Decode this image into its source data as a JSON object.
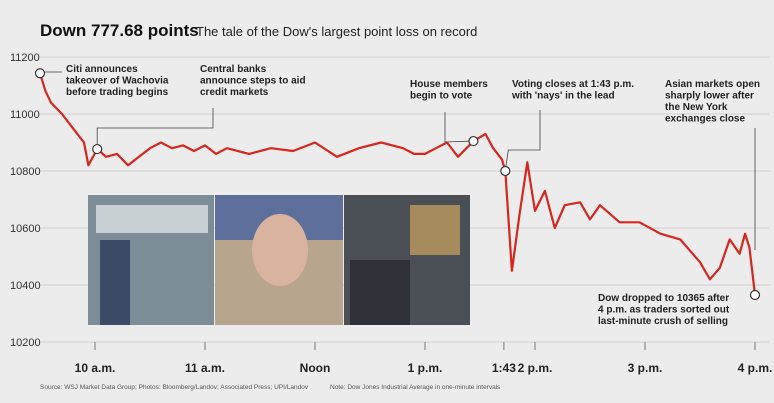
{
  "chart_data": {
    "type": "line",
    "title": "Down 777.68 points",
    "subtitle": "The tale of the Dow's largest point loss on record",
    "source": "Source: WSJ Market Data Group; Photos: Bloomberg/Landov; Associated Press; UPI/Landov",
    "note": "Note: Dow Jones Industrial Average in one-minute intervals",
    "color": "#d7261e",
    "grid": true,
    "xlim": [
      9.5,
      16
    ],
    "ylim": [
      10200,
      11200
    ],
    "yticks": [
      {
        "value": 10200,
        "label": "10200"
      },
      {
        "value": 10400,
        "label": "10400"
      },
      {
        "value": 10600,
        "label": "10600"
      },
      {
        "value": 10800,
        "label": "10800"
      },
      {
        "value": 11000,
        "label": "11000"
      },
      {
        "value": 11200,
        "label": "11200"
      }
    ],
    "xticks": [
      {
        "value": 10,
        "label": "10 a.m."
      },
      {
        "value": 11,
        "label": "11 a.m."
      },
      {
        "value": 12,
        "label": "Noon"
      },
      {
        "value": 13,
        "label": "1 p.m."
      },
      {
        "value": 13.717,
        "label": "1:43",
        "color": "#d7261e"
      },
      {
        "value": 14,
        "label": "2 p.m."
      },
      {
        "value": 15,
        "label": "3 p.m."
      },
      {
        "value": 16,
        "label": "4 p.m."
      }
    ],
    "x": [
      9.5,
      9.55,
      9.6,
      9.7,
      9.8,
      9.9,
      9.94,
      10.02,
      10.1,
      10.2,
      10.3,
      10.4,
      10.5,
      10.6,
      10.7,
      10.8,
      10.9,
      11.0,
      11.1,
      11.2,
      11.4,
      11.6,
      11.8,
      12.0,
      12.2,
      12.4,
      12.6,
      12.8,
      12.9,
      13.0,
      13.1,
      13.2,
      13.3,
      13.44,
      13.55,
      13.62,
      13.7,
      13.73,
      13.79,
      13.86,
      13.93,
      14.0,
      14.09,
      14.18,
      14.27,
      14.41,
      14.5,
      14.59,
      14.77,
      14.95,
      15.14,
      15.32,
      15.5,
      15.59,
      15.68,
      15.77,
      15.86,
      15.91,
      15.95,
      16.0
    ],
    "values": [
      11143,
      11080,
      11040,
      11000,
      10950,
      10900,
      10820,
      10877,
      10850,
      10860,
      10820,
      10850,
      10880,
      10900,
      10880,
      10890,
      10870,
      10890,
      10860,
      10880,
      10860,
      10880,
      10870,
      10900,
      10850,
      10880,
      10900,
      10880,
      10860,
      10860,
      10880,
      10900,
      10850,
      10905,
      10930,
      10880,
      10840,
      10800,
      10450,
      10650,
      10830,
      10660,
      10730,
      10600,
      10680,
      10690,
      10630,
      10680,
      10620,
      10620,
      10580,
      10560,
      10480,
      10420,
      10460,
      10560,
      10510,
      10580,
      10530,
      10365
    ],
    "annotations": [
      {
        "text": [
          "Citi announces",
          "takeover of Wachovia",
          "before trading begins"
        ],
        "x": 9.5,
        "y": 11143
      },
      {
        "text": [
          "Central banks",
          "announce steps to aid",
          "credit markets"
        ],
        "x": 10.02,
        "y": 10877
      },
      {
        "text": [
          "House members",
          "begin to vote"
        ],
        "x": 13.44,
        "y": 10905
      },
      {
        "text": [
          "Voting closes at 1:43 p.m.",
          "with 'nays' in the lead"
        ],
        "x": 13.73,
        "y": 10800,
        "color": "#d7261e"
      },
      {
        "text": [
          "Asian markets open",
          "sharply lower after",
          "the New York",
          "exchanges close"
        ]
      },
      {
        "text": [
          "Dow dropped to 10365 after",
          "4 p.m. as traders sorted out",
          "last-minute crush of selling"
        ],
        "x": 16.0,
        "y": 10365
      }
    ]
  }
}
